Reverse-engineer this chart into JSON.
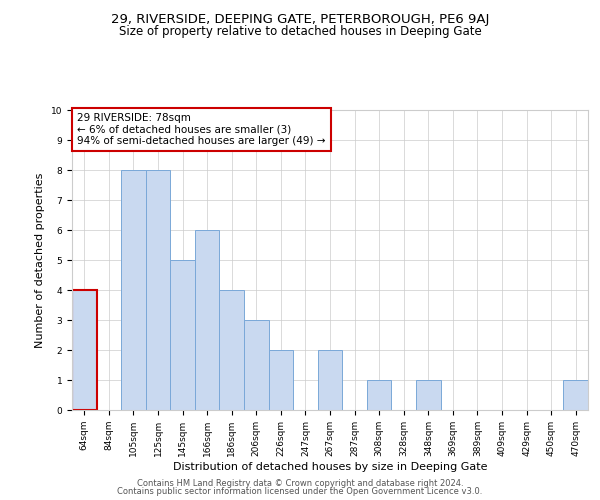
{
  "title": "29, RIVERSIDE, DEEPING GATE, PETERBOROUGH, PE6 9AJ",
  "subtitle": "Size of property relative to detached houses in Deeping Gate",
  "xlabel": "Distribution of detached houses by size in Deeping Gate",
  "ylabel": "Number of detached properties",
  "categories": [
    "64sqm",
    "84sqm",
    "105sqm",
    "125sqm",
    "145sqm",
    "166sqm",
    "186sqm",
    "206sqm",
    "226sqm",
    "247sqm",
    "267sqm",
    "287sqm",
    "308sqm",
    "328sqm",
    "348sqm",
    "369sqm",
    "389sqm",
    "409sqm",
    "429sqm",
    "450sqm",
    "470sqm"
  ],
  "values": [
    4,
    0,
    8,
    8,
    5,
    6,
    4,
    3,
    2,
    0,
    2,
    0,
    1,
    0,
    1,
    0,
    0,
    0,
    0,
    0,
    1
  ],
  "bar_color": "#c9d9f0",
  "bar_edge_color": "#7aa8d8",
  "highlight_bar_index": 0,
  "highlight_bar_edge_color": "#cc0000",
  "annotation_text_line1": "29 RIVERSIDE: 78sqm",
  "annotation_text_line2": "← 6% of detached houses are smaller (3)",
  "annotation_text_line3": "94% of semi-detached houses are larger (49) →",
  "annotation_box_edge_color": "#cc0000",
  "annotation_box_fill": "#ffffff",
  "ylim": [
    0,
    10
  ],
  "yticks": [
    0,
    1,
    2,
    3,
    4,
    5,
    6,
    7,
    8,
    9,
    10
  ],
  "grid_color": "#cccccc",
  "background_color": "#ffffff",
  "footer_line1": "Contains HM Land Registry data © Crown copyright and database right 2024.",
  "footer_line2": "Contains public sector information licensed under the Open Government Licence v3.0.",
  "title_fontsize": 9.5,
  "subtitle_fontsize": 8.5,
  "axis_label_fontsize": 8,
  "tick_fontsize": 6.5,
  "annotation_fontsize": 7.5,
  "footer_fontsize": 6
}
